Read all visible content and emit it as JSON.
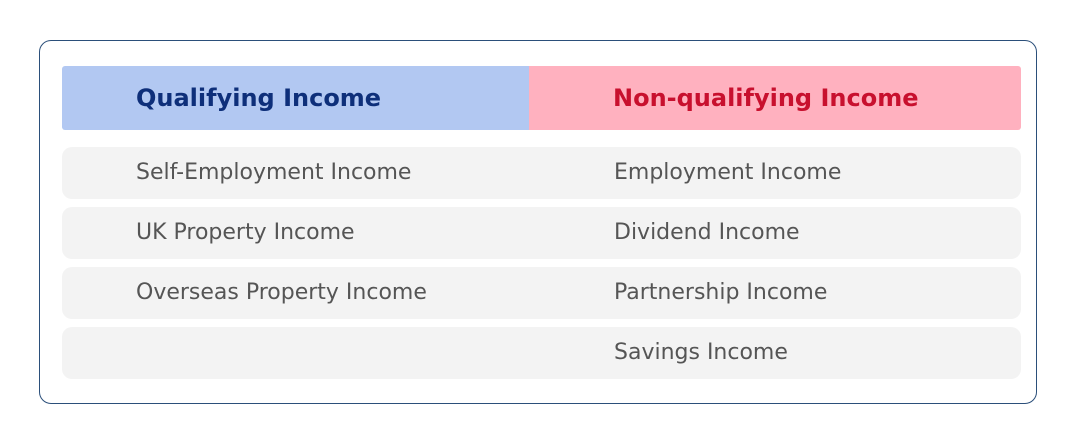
{
  "table": {
    "headers": {
      "qualifying": "Qualifying Income",
      "non_qualifying": "Non-qualifying Income"
    },
    "rows": [
      {
        "qualifying": "Self-Employment Income",
        "non_qualifying": "Employment Income"
      },
      {
        "qualifying": "UK Property Income",
        "non_qualifying": "Dividend Income"
      },
      {
        "qualifying": "Overseas Property Income",
        "non_qualifying": "Partnership Income"
      },
      {
        "qualifying": "",
        "non_qualifying": "Savings Income"
      }
    ]
  },
  "colors": {
    "qualifying_header_bg": "#b2c8f2",
    "qualifying_header_text": "#0e2f7a",
    "non_qualifying_header_bg": "#ffb1bf",
    "non_qualifying_header_text": "#c8102e",
    "row_bg": "#f3f3f3",
    "border": "#2b4f7a"
  }
}
